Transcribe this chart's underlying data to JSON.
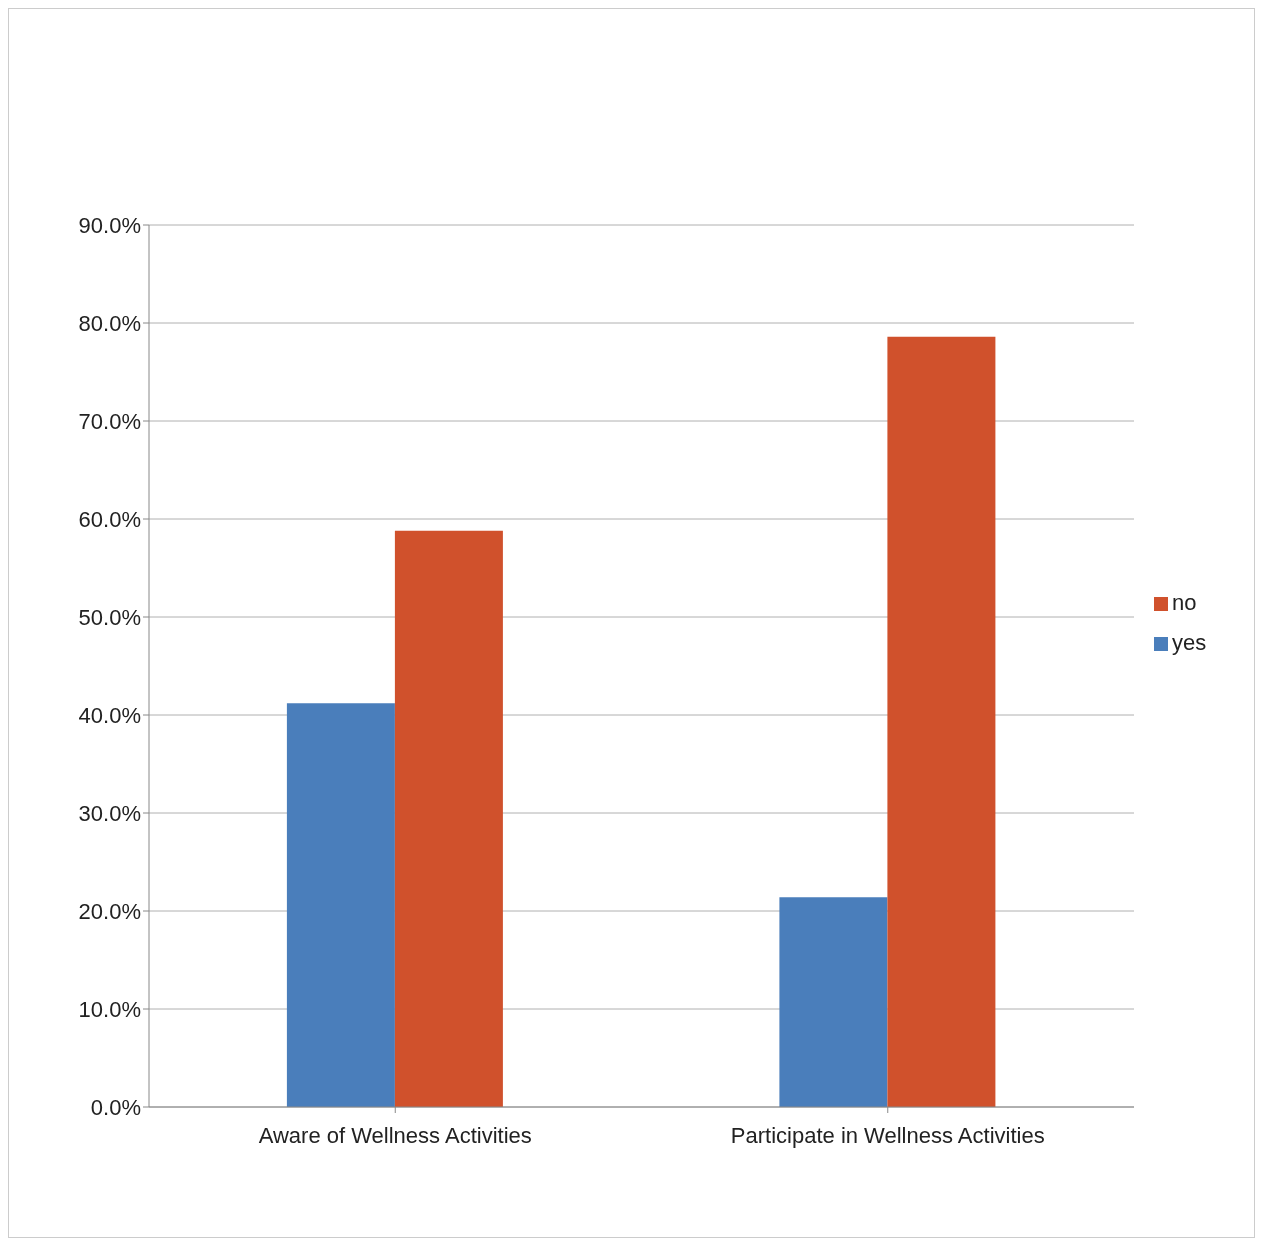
{
  "chart_data": {
    "type": "bar",
    "categories": [
      "Aware of Wellness Activities",
      "Participate in Wellness Activities"
    ],
    "series": [
      {
        "name": "yes",
        "color": "#4a7ebb",
        "values": [
          41.2,
          21.4
        ]
      },
      {
        "name": "no",
        "color": "#d0512c",
        "values": [
          58.8,
          78.6
        ]
      }
    ],
    "ylim": [
      0,
      90
    ],
    "yticks": [
      {
        "value": 0,
        "label": "0.0%"
      },
      {
        "value": 10,
        "label": "10.0%"
      },
      {
        "value": 20,
        "label": "20.0%"
      },
      {
        "value": 30,
        "label": "30.0%"
      },
      {
        "value": 40,
        "label": "40.0%"
      },
      {
        "value": 50,
        "label": "50.0%"
      },
      {
        "value": 60,
        "label": "60.0%"
      },
      {
        "value": 70,
        "label": "70.0%"
      },
      {
        "value": 80,
        "label": "80.0%"
      },
      {
        "value": 90,
        "label": "90.0%"
      }
    ],
    "grid": "y",
    "legend": "right"
  }
}
